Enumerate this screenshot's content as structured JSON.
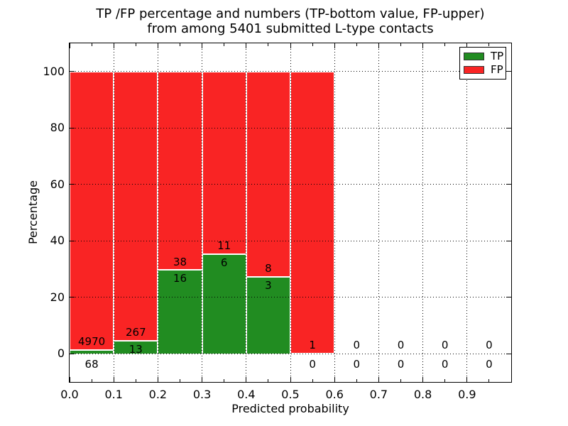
{
  "title": {
    "line1": "TP /FP percentage and numbers (TP-bottom value, FP-upper)",
    "line2": "from among 5401 submitted L-type contacts"
  },
  "axes": {
    "ylabel": "Percentage",
    "xlabel": "Predicted probability"
  },
  "legend": {
    "items": [
      {
        "label": "TP",
        "color": "#218c21"
      },
      {
        "label": "FP",
        "color": "#f92424"
      }
    ]
  },
  "colors": {
    "tp": "#218c21",
    "fp": "#f92424",
    "grid": "#000000",
    "background": "#ffffff"
  },
  "chart_data": {
    "type": "bar",
    "stacked": true,
    "units": "percent",
    "title": "TP /FP percentage and numbers (TP-bottom value, FP-upper) from among 5401 submitted L-type contacts",
    "total_submitted": 5401,
    "xlabel": "Predicted probability",
    "ylabel": "Percentage",
    "categories": [
      "0.0-0.1",
      "0.1-0.2",
      "0.2-0.3",
      "0.3-0.4",
      "0.4-0.5",
      "0.5-0.6",
      "0.6-0.7",
      "0.7-0.8",
      "0.8-0.9",
      "0.9-1.0"
    ],
    "bin_starts": [
      0.0,
      0.1,
      0.2,
      0.3,
      0.4,
      0.5,
      0.6,
      0.7,
      0.8,
      0.9
    ],
    "bin_width": 0.1,
    "series": [
      {
        "name": "TP",
        "color": "#218c21",
        "counts": [
          68,
          13,
          16,
          6,
          3,
          0,
          0,
          0,
          0,
          0
        ],
        "percent": [
          1.35,
          4.64,
          29.63,
          35.29,
          27.27,
          0,
          0,
          0,
          0,
          0
        ]
      },
      {
        "name": "FP",
        "color": "#f92424",
        "counts": [
          4970,
          267,
          38,
          11,
          8,
          1,
          0,
          0,
          0,
          0
        ],
        "percent": [
          98.65,
          95.36,
          70.37,
          64.71,
          72.73,
          100,
          0,
          0,
          0,
          0
        ]
      }
    ],
    "x_tick_labels": [
      "0.0",
      "0.1",
      "0.2",
      "0.3",
      "0.4",
      "0.5",
      "0.6",
      "0.7",
      "0.8",
      "0.9"
    ],
    "y_tick_labels": [
      "0",
      "20",
      "40",
      "60",
      "80",
      "100"
    ],
    "y_tick_values": [
      0,
      20,
      40,
      60,
      80,
      100
    ],
    "xlim": [
      0.0,
      1.0
    ],
    "ylim": [
      -10,
      110
    ],
    "grid": "dotted",
    "legend_position": "upper right"
  }
}
